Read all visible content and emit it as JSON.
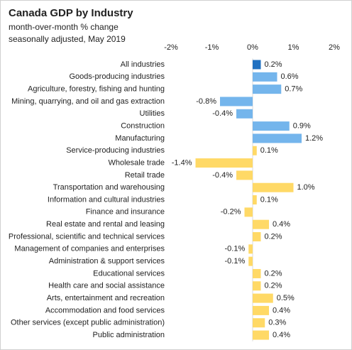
{
  "chart_data": {
    "type": "hbar",
    "title": "Canada GDP by Industry",
    "subtitle": [
      "month-over-month % change",
      "seasonally adjusted, May 2019"
    ],
    "categories": [
      "All industries",
      "Goods-producing industries",
      "Agriculture, forestry, fishing and hunting",
      "Mining, quarrying, and oil and gas extraction",
      "Utilities",
      "Construction",
      "Manufacturing",
      "Service-producing industries",
      "Wholesale trade",
      "Retail trade",
      "Transportation and warehousing",
      "Information and cultural industries",
      "Finance and insurance",
      "Real estate and rental and leasing",
      "Professional, scientific and technical services",
      "Management of companies and enterprises",
      "Administration & support services",
      "Educational services",
      "Health care and social assistance",
      "Arts, entertainment and recreation",
      "Accommodation and food services",
      "Other services (except public administration)",
      "Public administration"
    ],
    "values": [
      0.2,
      0.6,
      0.7,
      -0.8,
      -0.4,
      0.9,
      1.2,
      0.1,
      -1.4,
      -0.4,
      1.0,
      0.1,
      -0.2,
      0.4,
      0.2,
      -0.1,
      -0.1,
      0.2,
      0.2,
      0.5,
      0.4,
      0.3,
      0.4
    ],
    "value_labels": [
      "0.2%",
      "0.6%",
      "0.7%",
      "-0.8%",
      "-0.4%",
      "0.9%",
      "1.2%",
      "0.1%",
      "-1.4%",
      "-0.4%",
      "1.0%",
      "0.1%",
      "-0.2%",
      "0.4%",
      "0.2%",
      "-0.1%",
      "-0.1%",
      "0.2%",
      "0.2%",
      "0.5%",
      "0.4%",
      "0.3%",
      "0.4%"
    ],
    "colors": [
      "#1f70c1",
      "#74b5ec",
      "#74b5ec",
      "#74b5ec",
      "#74b5ec",
      "#74b5ec",
      "#74b5ec",
      "#ffd966",
      "#ffd966",
      "#ffd966",
      "#ffd966",
      "#ffd966",
      "#ffd966",
      "#ffd966",
      "#ffd966",
      "#ffd966",
      "#ffd966",
      "#ffd966",
      "#ffd966",
      "#ffd966",
      "#ffd966",
      "#ffd966",
      "#ffd966"
    ],
    "xlim": [
      -2,
      2
    ],
    "xticks": [
      {
        "value": -2,
        "label": "-2%"
      },
      {
        "value": -1,
        "label": "-1%"
      },
      {
        "value": 0,
        "label": "0%"
      },
      {
        "value": 1,
        "label": "1%"
      },
      {
        "value": 2,
        "label": "2%"
      }
    ]
  }
}
